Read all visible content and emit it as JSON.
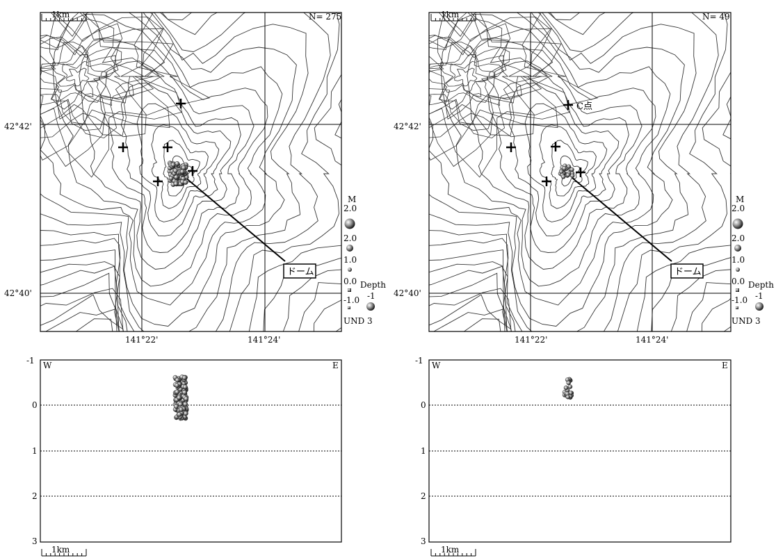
{
  "panels": [
    {
      "id": "left",
      "count_label": "N= 275",
      "scale_label": "1km",
      "lat_labels": [
        "42°42'",
        "42°40'"
      ],
      "lon_labels": [
        "141°22'",
        "141°24'"
      ],
      "dome_label": "ドーム",
      "station_label": "",
      "legend": {
        "magnitude_title": "M",
        "magnitude_labels": [
          "2.0",
          "2.0",
          "1.0",
          "0.0",
          "-1.0",
          "UND"
        ],
        "depth_title": "Depth",
        "depth_labels": [
          "-1",
          "3"
        ]
      },
      "section": {
        "west_label": "W",
        "east_label": "E",
        "depth_ticks": [
          "-1",
          "0",
          "1",
          "2",
          "3"
        ],
        "scale_label": "1km"
      }
    },
    {
      "id": "right",
      "count_label": "N= 49",
      "scale_label": "1km",
      "lat_labels": [
        "42°42'",
        "42°40'"
      ],
      "lon_labels": [
        "141°22'",
        "141°24'"
      ],
      "dome_label": "ドーム",
      "station_label": "C点",
      "legend": {
        "magnitude_title": "M",
        "magnitude_labels": [
          "2.0",
          "2.0",
          "1.0",
          "0.0",
          "-1.0",
          "UND"
        ],
        "depth_title": "Depth",
        "depth_labels": [
          "-1",
          "3"
        ]
      },
      "section": {
        "west_label": "W",
        "east_label": "E",
        "depth_ticks": [
          "-1",
          "0",
          "1",
          "2",
          "3"
        ],
        "scale_label": "1km"
      }
    }
  ],
  "colors": {
    "line": "#000000",
    "contour": "#333333",
    "quake": "#8a8a8a"
  }
}
